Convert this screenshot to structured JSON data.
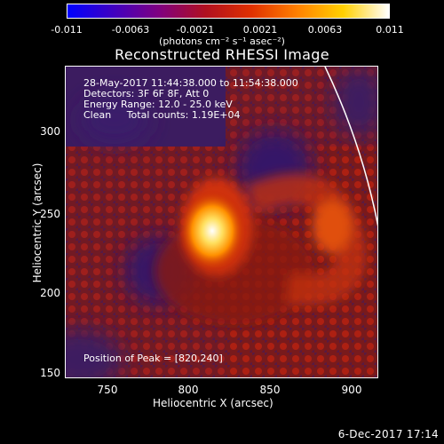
{
  "colorbar": {
    "ticks": [
      "-0.011",
      "-0.0063",
      "-0.0021",
      "0.0021",
      "0.0063",
      "0.011"
    ],
    "units": "(photons cm⁻² s⁻¹ asec⁻²)",
    "colors": [
      "#0000ff",
      "#4000c0",
      "#800080",
      "#b01020",
      "#e03000",
      "#ff8000",
      "#ffd000",
      "#ffffff"
    ]
  },
  "title": "Reconstructed RHESSI Image",
  "annotations": {
    "line1": "28-May-2017 11:44:38.000 to 11:54:38.000",
    "line2": "Detectors: 3F 6F 8F, Att 0",
    "line3": "Energy Range: 12.0 - 25.0 keV",
    "line4": "Clean     Total counts: 1.19E+04",
    "peak": "Position of Peak = [820,240]"
  },
  "axes": {
    "xlabel": "Heliocentric X (arcsec)",
    "ylabel": "Heliocentric Y (arcsec)",
    "xticks": [
      "750",
      "800",
      "850",
      "900"
    ],
    "yticks": [
      "300",
      "250",
      "200",
      "150"
    ]
  },
  "footer": "6-Dec-2017 17:14"
}
